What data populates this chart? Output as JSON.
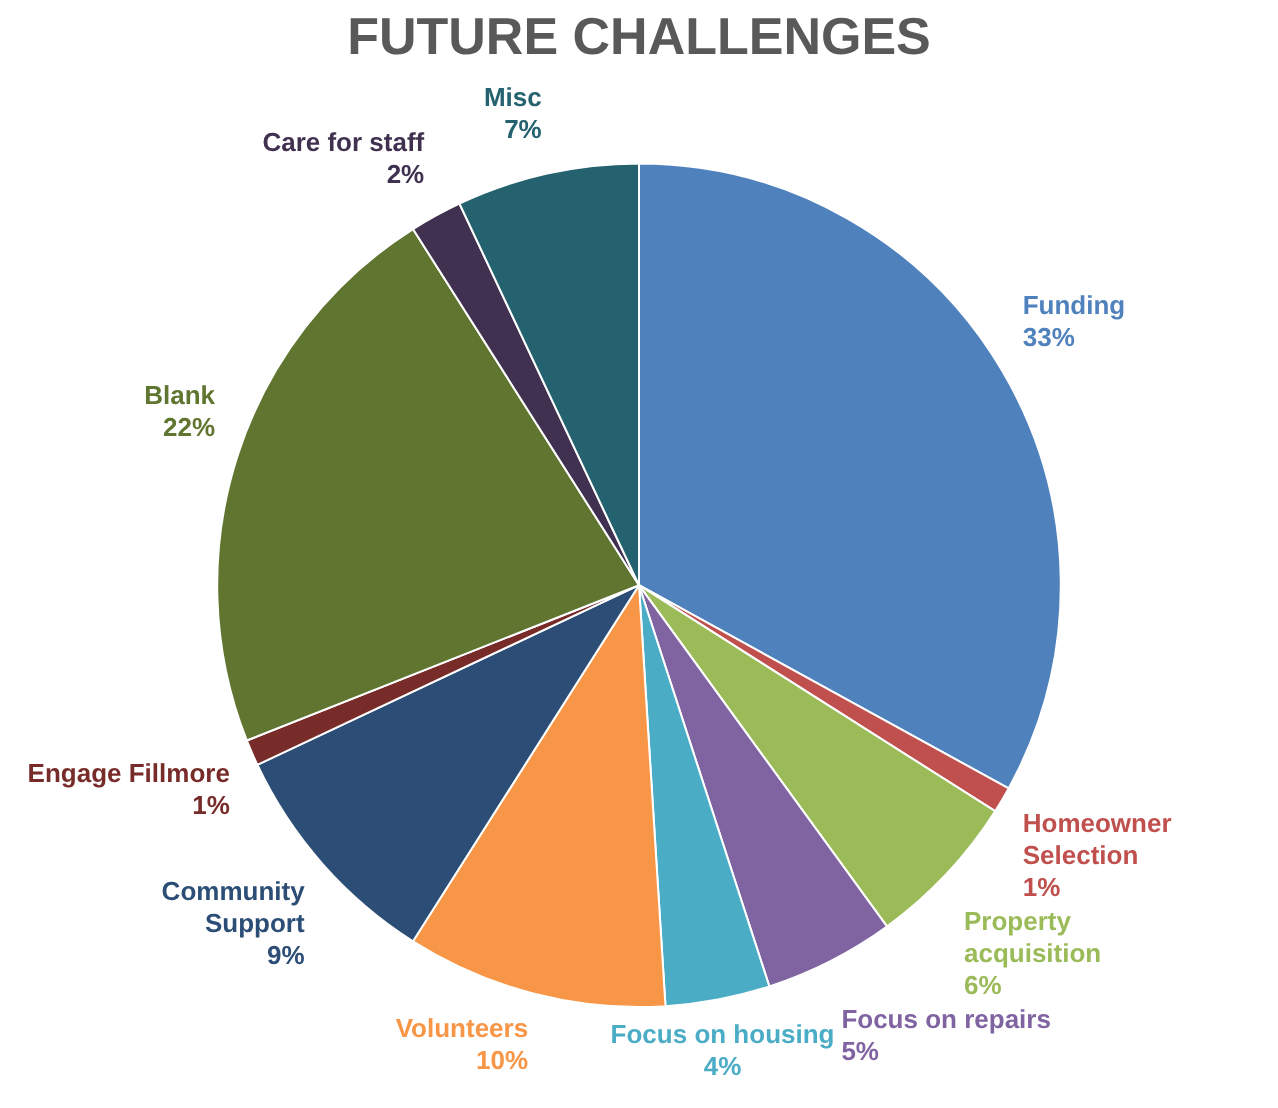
{
  "chart_data": {
    "type": "pie",
    "title": "FUTURE CHALLENGES",
    "categories": [
      "Funding",
      "Homeowner Selection",
      "Property acquisition",
      "Focus on repairs",
      "Focus on housing",
      "Volunteers",
      "Community Support",
      "Engage Fillmore",
      "Blank",
      "Care for staff",
      "Misc"
    ],
    "values": [
      33,
      1,
      6,
      5,
      4,
      10,
      9,
      1,
      22,
      2,
      7
    ],
    "value_labels": [
      "33%",
      "1%",
      "6%",
      "5%",
      "4%",
      "10%",
      "9%",
      "1%",
      "22%",
      "2%",
      "7%"
    ],
    "colors": [
      "#4f81bd",
      "#c0504d",
      "#9bbb59",
      "#8064a2",
      "#4bacc6",
      "#f79646",
      "#2c4d75",
      "#772c2a",
      "#5f7530",
      "#403151",
      "#24626f"
    ],
    "legend": false
  }
}
